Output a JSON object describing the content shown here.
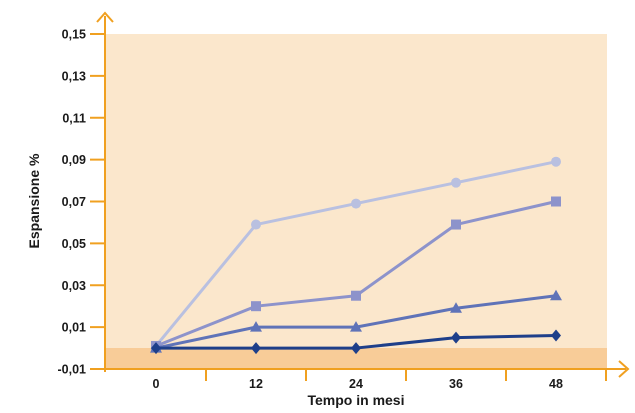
{
  "chart_data": {
    "type": "line",
    "xlabel": "Tempo in mesi",
    "ylabel": "Espansione %",
    "x": [
      0,
      12,
      24,
      36,
      48
    ],
    "x_tick_labels": [
      "0",
      "12",
      "24",
      "36",
      "48"
    ],
    "ylim": [
      -0.01,
      0.15
    ],
    "y_ticks": [
      -0.01,
      0.01,
      0.03,
      0.05,
      0.07,
      0.09,
      0.11,
      0.13,
      0.15
    ],
    "y_tick_labels": [
      "-0,01",
      "0,01",
      "0,03",
      "0,05",
      "0,07",
      "0,09",
      "0,11",
      "0,13",
      "0,15"
    ],
    "grid": false,
    "legend": "none",
    "series": [
      {
        "marker": "circle",
        "color": "#b9c0e0",
        "values": [
          0.001,
          0.059,
          0.069,
          0.079,
          0.089
        ]
      },
      {
        "marker": "square",
        "color": "#8d93cb",
        "values": [
          0.001,
          0.02,
          0.025,
          0.059,
          0.07
        ]
      },
      {
        "marker": "triangle",
        "color": "#5f73b8",
        "values": [
          0.0,
          0.01,
          0.01,
          0.019,
          0.025
        ]
      },
      {
        "marker": "diamond",
        "color": "#1e3f8a",
        "values": [
          0.0,
          0.0,
          0.0,
          0.005,
          0.006
        ]
      }
    ],
    "colors": {
      "plot_background": "#fbe7cc",
      "negative_band": "#f8cc98",
      "axes": "#f0a020"
    }
  }
}
